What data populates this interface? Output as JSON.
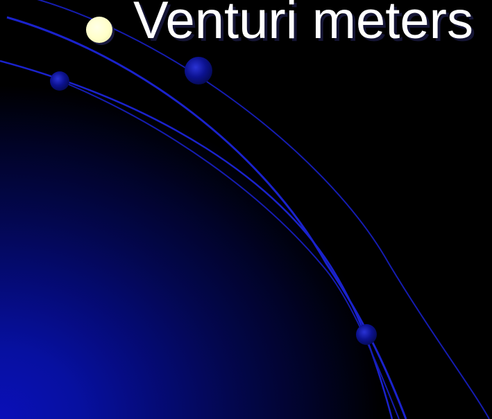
{
  "slide": {
    "bullet_text": "Venturi meters"
  },
  "colors": {
    "background": "#000000",
    "gradient_accent": "#0a0fb8",
    "arc_line": "#1a22cc",
    "orb": "#0c1290",
    "bullet": "#ffffc8",
    "text": "#ffffff"
  }
}
